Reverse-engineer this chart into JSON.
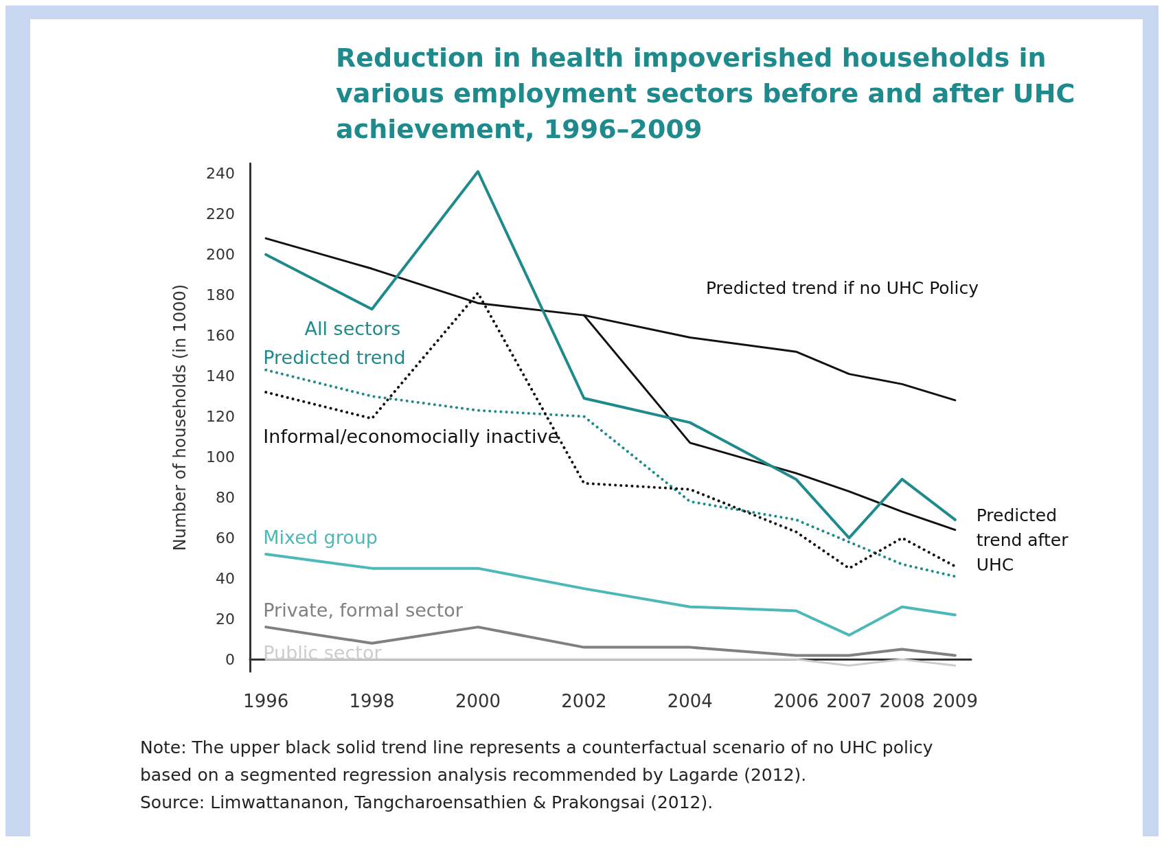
{
  "chart_data": {
    "type": "line",
    "title": "Reduction in health impoverished households in various employment sectors before and after UHC achievement, 1996–2009",
    "ylabel": "Number of households (in 1000)",
    "x": [
      1996,
      1998,
      2000,
      2002,
      2004,
      2006,
      2007,
      2008,
      2009
    ],
    "xlim": [
      1995.7,
      2009.3
    ],
    "xticks": [
      1996,
      1998,
      2000,
      2002,
      2004,
      2006,
      2007,
      2008,
      2009
    ],
    "ylim": [
      -6,
      245
    ],
    "yticks": [
      0,
      20,
      40,
      60,
      80,
      100,
      120,
      140,
      160,
      180,
      200,
      220,
      240
    ],
    "grid": false,
    "legend": false,
    "marker": "none",
    "series": [
      {
        "name": "All sectors",
        "color": "#1f8a8c",
        "line_style": "solid",
        "values": [
          200,
          173,
          241,
          129,
          117,
          89,
          60,
          89,
          69
        ]
      },
      {
        "name": "Predicted trend if no UHC Policy",
        "color": "#111111",
        "line_style": "solid",
        "values": [
          208,
          193,
          176,
          170,
          159,
          152,
          141,
          136,
          128
        ]
      },
      {
        "name": "Predicted trend after UHC",
        "color": "#111111",
        "line_style": "solid",
        "values": [
          null,
          null,
          null,
          170,
          107,
          92,
          83,
          73,
          64
        ]
      },
      {
        "name": "Informal/economocially inactive",
        "color": "#111111",
        "line_style": "dotted",
        "values": [
          132,
          119,
          181,
          87,
          84,
          63,
          45,
          60,
          46
        ]
      },
      {
        "name": "Predicted trend",
        "color": "#1f8a8c",
        "line_style": "dotted",
        "values": [
          143,
          130,
          123,
          120,
          78,
          69,
          58,
          47,
          41
        ]
      },
      {
        "name": "Mixed group",
        "color": "#4db8b8",
        "line_style": "solid",
        "values": [
          52,
          45,
          45,
          35,
          26,
          24,
          12,
          26,
          22
        ]
      },
      {
        "name": "Private, formal sector",
        "color": "#808080",
        "line_style": "solid",
        "values": [
          16,
          8,
          16,
          6,
          6,
          2,
          2,
          5,
          2
        ]
      },
      {
        "name": "Public sector",
        "color": "#cccccc",
        "line_style": "solid",
        "values": [
          0,
          0,
          0,
          0,
          0,
          0,
          -3,
          0,
          -3
        ]
      }
    ],
    "annotations": [
      "Note: The upper black solid trend line represents a counterfactual scenario of no UHC policy based on a segmented regression analysis recommended by Lagarde (2012).",
      "Source: Limwattananon, Tangcharoensathien & Prakongsai (2012)."
    ]
  }
}
